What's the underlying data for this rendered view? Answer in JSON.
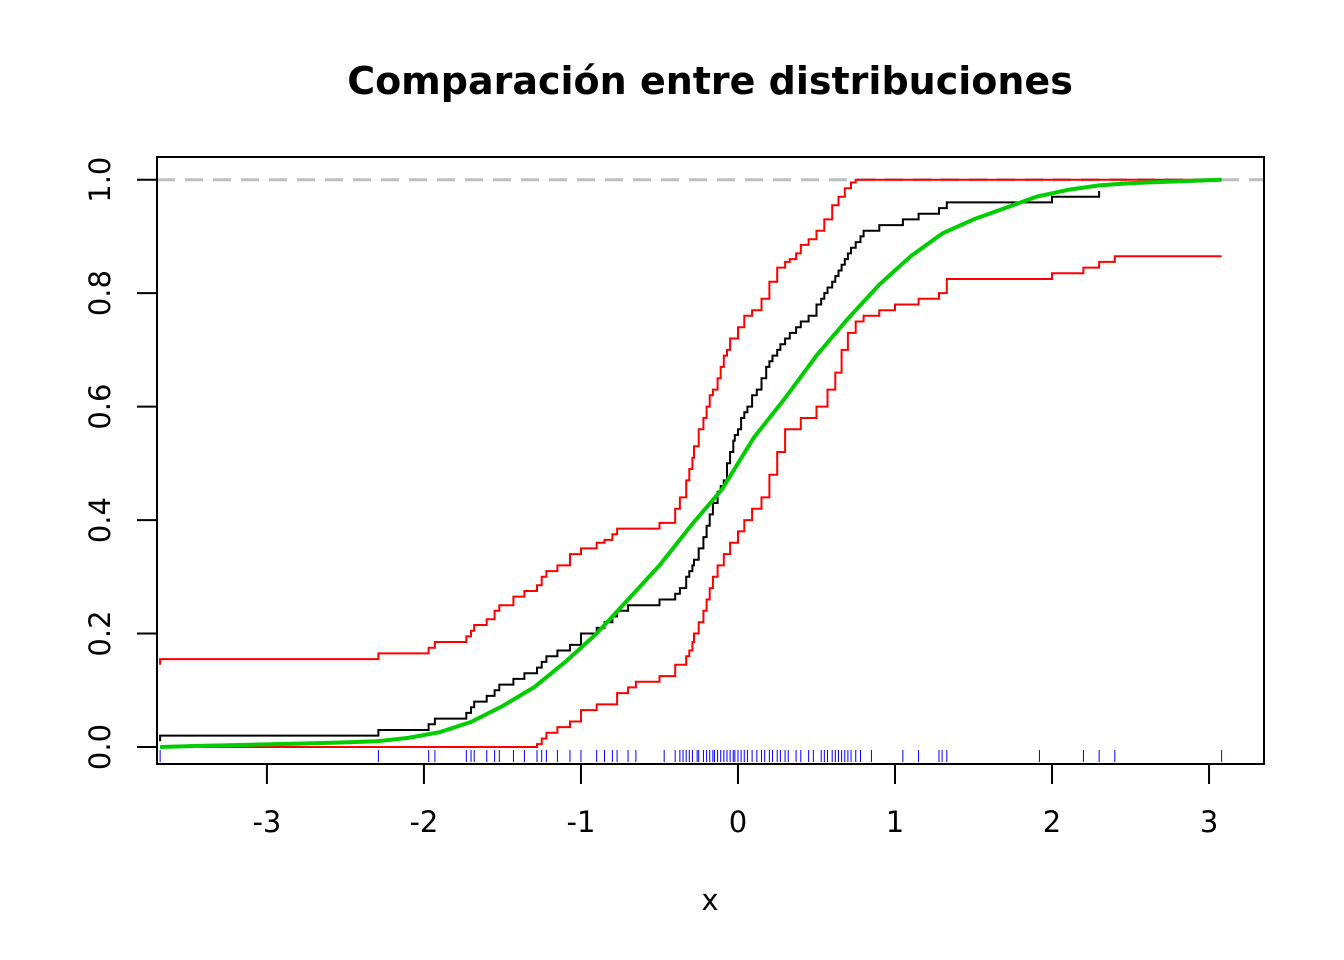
{
  "chart_data": {
    "type": "line",
    "title": "Comparación entre distribuciones",
    "xlabel": "x",
    "ylabel": "",
    "xlim": [
      -3.7,
      3.35
    ],
    "ylim": [
      -0.03,
      1.04
    ],
    "x_ticks": [
      "-3",
      "-2",
      "-1",
      "0",
      "1",
      "2",
      "3"
    ],
    "x_tick_values": [
      -3,
      -2,
      -1,
      0,
      1,
      2,
      3
    ],
    "y_ticks": [
      "0.0",
      "0.2",
      "0.4",
      "0.6",
      "0.8",
      "1.0"
    ],
    "y_tick_values": [
      0,
      0.2,
      0.4,
      0.6,
      0.8,
      1.0
    ],
    "reference_line": {
      "y": 1.0,
      "style": "dashed",
      "color": "#bebebe"
    },
    "colors": {
      "ecdf": "#000000",
      "bands": "#ff0000",
      "theoretical": "#00cd00",
      "rug": "#0000ff",
      "reference": "#bebebe"
    },
    "series": [
      {
        "kind": "ecdf",
        "color": "#000000",
        "x": [
          -3.68,
          -2.29,
          -1.97,
          -1.93,
          -1.73,
          -1.7,
          -1.68,
          -1.6,
          -1.55,
          -1.52,
          -1.43,
          -1.36,
          -1.28,
          -1.25,
          -1.22,
          -1.15,
          -1.07,
          -1.0,
          -0.9,
          -0.85,
          -0.8,
          -0.77,
          -0.7,
          -0.65,
          -0.5,
          -0.4,
          -0.37,
          -0.33,
          -0.31,
          -0.29,
          -0.28,
          -0.25,
          -0.22,
          -0.2,
          -0.18,
          -0.16,
          -0.13,
          -0.11,
          -0.09,
          -0.07,
          -0.05,
          -0.03,
          -0.02,
          0.0,
          0.02,
          0.04,
          0.06,
          0.09,
          0.12,
          0.15,
          0.18,
          0.2,
          0.22,
          0.25,
          0.27,
          0.3,
          0.33,
          0.37,
          0.4,
          0.45,
          0.5,
          0.53,
          0.55,
          0.57,
          0.6,
          0.62,
          0.64,
          0.66,
          0.68,
          0.7,
          0.72,
          0.75,
          0.78,
          0.8,
          0.85,
          0.9,
          1.0,
          1.05,
          1.15,
          1.28,
          1.33,
          1.92,
          2.0,
          2.2,
          2.3
        ],
        "y": [
          0.02,
          0.03,
          0.04,
          0.05,
          0.06,
          0.07,
          0.08,
          0.09,
          0.1,
          0.11,
          0.12,
          0.13,
          0.14,
          0.15,
          0.16,
          0.17,
          0.18,
          0.2,
          0.21,
          0.22,
          0.23,
          0.24,
          0.25,
          0.25,
          0.26,
          0.27,
          0.28,
          0.3,
          0.31,
          0.32,
          0.33,
          0.35,
          0.37,
          0.39,
          0.41,
          0.43,
          0.45,
          0.46,
          0.47,
          0.5,
          0.52,
          0.54,
          0.55,
          0.56,
          0.58,
          0.59,
          0.6,
          0.62,
          0.63,
          0.65,
          0.67,
          0.68,
          0.69,
          0.7,
          0.71,
          0.72,
          0.73,
          0.74,
          0.75,
          0.76,
          0.78,
          0.79,
          0.8,
          0.81,
          0.82,
          0.83,
          0.84,
          0.85,
          0.86,
          0.87,
          0.88,
          0.89,
          0.9,
          0.91,
          0.91,
          0.92,
          0.92,
          0.93,
          0.94,
          0.95,
          0.96,
          0.96,
          0.97,
          0.97,
          0.98
        ]
      },
      {
        "kind": "upper-band",
        "color": "#ff0000",
        "x": [
          -3.68,
          -2.29,
          -1.97,
          -1.93,
          -1.73,
          -1.7,
          -1.68,
          -1.6,
          -1.55,
          -1.52,
          -1.43,
          -1.36,
          -1.28,
          -1.25,
          -1.22,
          -1.15,
          -1.07,
          -1.0,
          -0.9,
          -0.85,
          -0.8,
          -0.77,
          -0.7,
          -0.5,
          -0.4,
          -0.37,
          -0.33,
          -0.31,
          -0.29,
          -0.28,
          -0.25,
          -0.22,
          -0.2,
          -0.18,
          -0.16,
          -0.13,
          -0.11,
          -0.09,
          -0.07,
          -0.05,
          0.0,
          0.04,
          0.09,
          0.15,
          0.2,
          0.25,
          0.3,
          0.33,
          0.37,
          0.4,
          0.45,
          0.5,
          0.55,
          0.6,
          0.64,
          0.68,
          0.72,
          0.75,
          0.78
        ],
        "y": [
          0.155,
          0.165,
          0.175,
          0.185,
          0.195,
          0.205,
          0.215,
          0.225,
          0.24,
          0.25,
          0.265,
          0.275,
          0.285,
          0.3,
          0.31,
          0.32,
          0.34,
          0.35,
          0.36,
          0.365,
          0.375,
          0.385,
          0.385,
          0.395,
          0.42,
          0.44,
          0.47,
          0.49,
          0.51,
          0.53,
          0.56,
          0.58,
          0.6,
          0.62,
          0.63,
          0.65,
          0.67,
          0.69,
          0.7,
          0.72,
          0.74,
          0.76,
          0.77,
          0.79,
          0.82,
          0.845,
          0.855,
          0.86,
          0.87,
          0.885,
          0.895,
          0.91,
          0.93,
          0.955,
          0.97,
          0.985,
          0.995,
          1.0,
          1.0
        ]
      },
      {
        "kind": "lower-band",
        "color": "#ff0000",
        "x": [
          -3.68,
          -1.28,
          -1.25,
          -1.22,
          -1.15,
          -1.07,
          -1.0,
          -0.9,
          -0.77,
          -0.7,
          -0.65,
          -0.5,
          -0.4,
          -0.33,
          -0.31,
          -0.29,
          -0.28,
          -0.25,
          -0.22,
          -0.2,
          -0.18,
          -0.16,
          -0.13,
          -0.09,
          -0.05,
          0.0,
          0.04,
          0.09,
          0.15,
          0.2,
          0.25,
          0.3,
          0.4,
          0.5,
          0.57,
          0.62,
          0.66,
          0.7,
          0.75,
          0.8,
          0.9,
          1.0,
          1.15,
          1.28,
          1.33,
          1.92,
          2.0,
          2.2,
          2.3,
          2.4
        ],
        "y": [
          0.0,
          0.005,
          0.015,
          0.025,
          0.035,
          0.045,
          0.065,
          0.075,
          0.095,
          0.105,
          0.115,
          0.125,
          0.145,
          0.16,
          0.17,
          0.185,
          0.2,
          0.22,
          0.24,
          0.26,
          0.28,
          0.3,
          0.32,
          0.34,
          0.36,
          0.38,
          0.4,
          0.42,
          0.44,
          0.48,
          0.52,
          0.56,
          0.58,
          0.6,
          0.63,
          0.66,
          0.7,
          0.73,
          0.75,
          0.76,
          0.77,
          0.78,
          0.79,
          0.8,
          0.825,
          0.825,
          0.835,
          0.845,
          0.855,
          0.865
        ]
      },
      {
        "kind": "theoretical-cdf",
        "color": "#00cd00",
        "x": [
          -3.68,
          -3.4,
          -3.1,
          -2.8,
          -2.5,
          -2.3,
          -2.1,
          -1.9,
          -1.7,
          -1.5,
          -1.3,
          -1.1,
          -0.9,
          -0.7,
          -0.5,
          -0.3,
          -0.1,
          0.0,
          0.1,
          0.3,
          0.5,
          0.7,
          0.9,
          1.1,
          1.3,
          1.5,
          1.7,
          1.9,
          2.1,
          2.3,
          2.5,
          2.8,
          3.08
        ],
        "y": [
          0.0,
          0.002,
          0.004,
          0.006,
          0.008,
          0.01,
          0.016,
          0.026,
          0.044,
          0.072,
          0.105,
          0.15,
          0.2,
          0.26,
          0.32,
          0.39,
          0.455,
          0.5,
          0.545,
          0.615,
          0.69,
          0.755,
          0.815,
          0.865,
          0.905,
          0.93,
          0.95,
          0.97,
          0.982,
          0.99,
          0.994,
          0.997,
          1.0
        ]
      }
    ],
    "rug": [
      -3.68,
      -2.29,
      -1.97,
      -1.93,
      -1.73,
      -1.7,
      -1.68,
      -1.6,
      -1.55,
      -1.52,
      -1.43,
      -1.36,
      -1.28,
      -1.25,
      -1.22,
      -1.15,
      -1.07,
      -1.0,
      -0.9,
      -0.85,
      -0.8,
      -0.77,
      -0.7,
      -0.65,
      -0.47,
      -0.4,
      -0.37,
      -0.35,
      -0.33,
      -0.31,
      -0.29,
      -0.26,
      -0.25,
      -0.22,
      -0.2,
      -0.18,
      -0.16,
      -0.15,
      -0.13,
      -0.11,
      -0.09,
      -0.07,
      -0.05,
      -0.03,
      -0.02,
      0.0,
      0.02,
      0.04,
      0.06,
      0.09,
      0.12,
      0.15,
      0.17,
      0.2,
      0.22,
      0.25,
      0.27,
      0.3,
      0.32,
      0.37,
      0.4,
      0.45,
      0.48,
      0.53,
      0.55,
      0.57,
      0.6,
      0.62,
      0.64,
      0.66,
      0.68,
      0.7,
      0.72,
      0.75,
      0.78,
      0.85,
      1.05,
      1.15,
      1.28,
      1.3,
      1.33,
      1.92,
      2.2,
      2.3,
      2.4,
      3.08
    ]
  }
}
